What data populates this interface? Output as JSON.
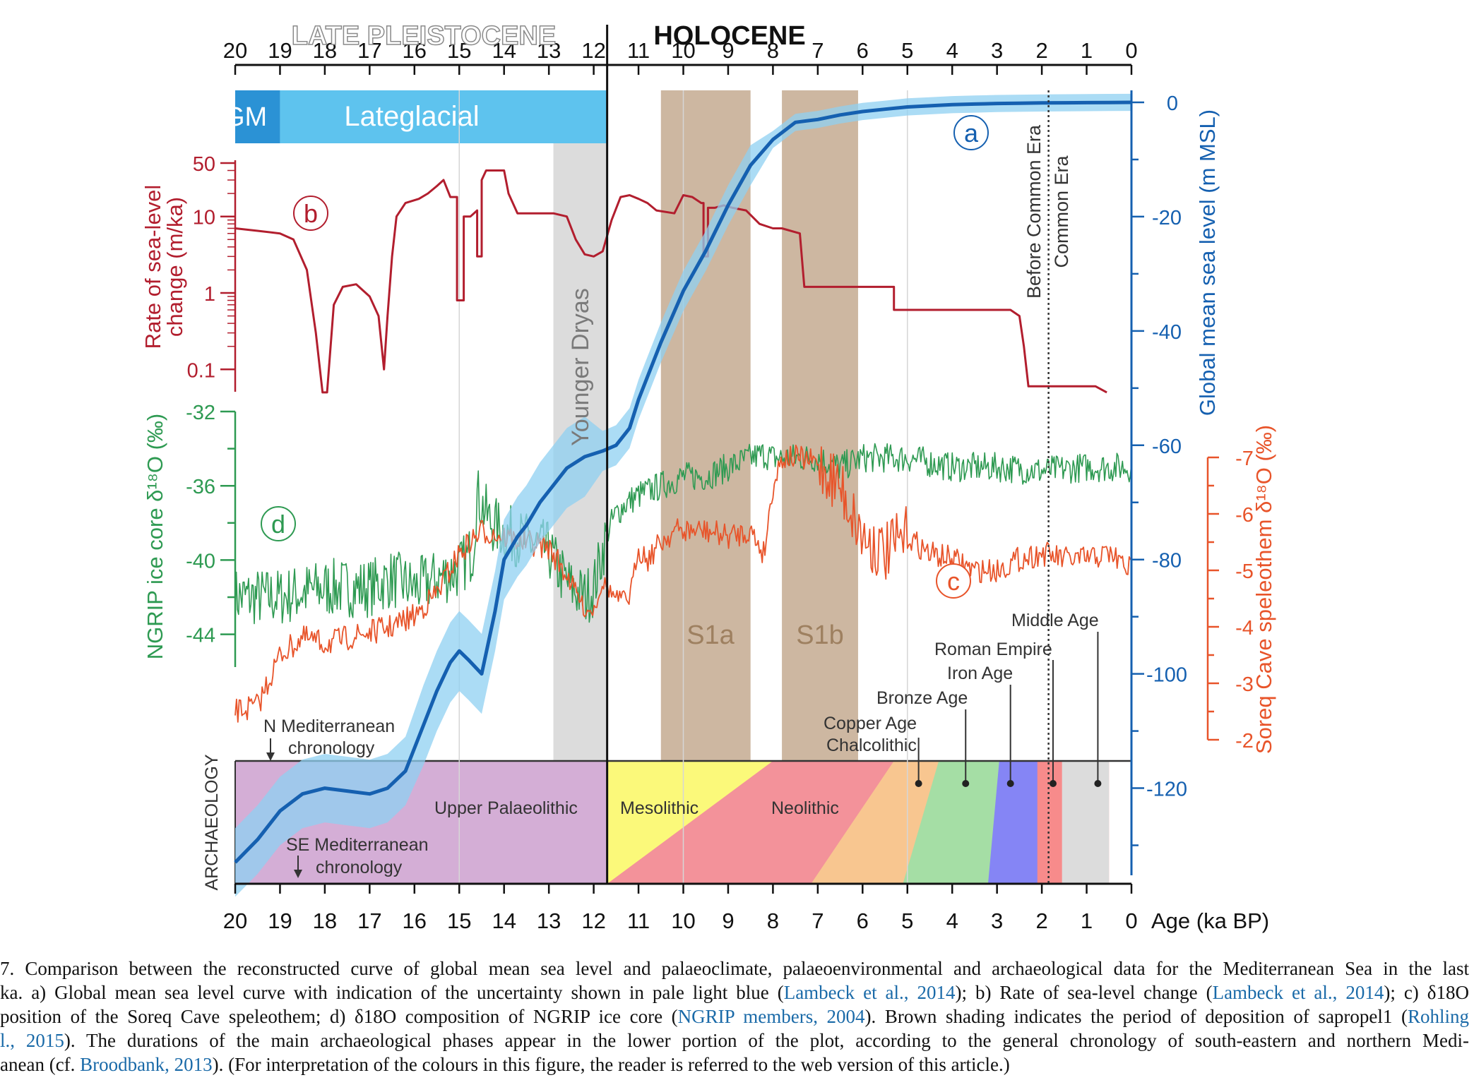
{
  "header": {
    "late_pleistocene": "LATE PLEISTOCENE",
    "holocene": "HOLOCENE"
  },
  "periods": {
    "lgm": "LGM",
    "lateglacial": "Lateglacial",
    "younger_dryas": "Younger Dryas",
    "s1a": "S1a",
    "s1b": "S1b"
  },
  "axes": {
    "age_ticks": [
      "20",
      "19",
      "18",
      "17",
      "16",
      "15",
      "14",
      "13",
      "12",
      "11",
      "10",
      "9",
      "8",
      "7",
      "6",
      "5",
      "4",
      "3",
      "2",
      "1",
      "0"
    ],
    "age_label": "Age (ka BP)",
    "rate_ticks": [
      "50",
      "10",
      "1",
      "0.1"
    ],
    "rate_label_1": "Rate of sea-level",
    "rate_label_2": "change (m/ka)",
    "ngrip_ticks": [
      "-32",
      "-36",
      "-40",
      "-44"
    ],
    "ngrip_label": "NGRIP ice core δ¹⁸O (‰)",
    "gmsl_ticks": [
      "0",
      "-20",
      "-40",
      "-60",
      "-80",
      "-100",
      "-120"
    ],
    "gmsl_label": "Global mean sea level (m MSL)",
    "soreq_ticks": [
      "-7",
      "-6",
      "-5",
      "-4",
      "-3",
      "-2"
    ],
    "soreq_label": "Soreq Cave speleothem δ¹⁸O (‰)",
    "archaeology_label": "ARCHAEOLOGY"
  },
  "circle_labels": {
    "a": "a",
    "b": "b",
    "c": "c",
    "d": "d"
  },
  "era_labels": {
    "bce": "Before Common Era",
    "ce": "Common Era"
  },
  "archaeology": {
    "n_chron_1": "N Mediterranean",
    "n_chron_2": "chronology",
    "se_chron_1": "SE Mediterranean",
    "se_chron_2": "chronology",
    "upper_palaeolithic": "Upper Palaeolithic",
    "mesolithic": "Mesolithic",
    "neolithic": "Neolithic",
    "copper_age_1": "Copper Age",
    "copper_age_2": "Chalcolithic",
    "bronze_age": "Bronze Age",
    "iron_age": "Iron Age",
    "roman_empire": "Roman Empire",
    "middle_age": "Middle Age"
  },
  "colors": {
    "gmsl": "#1560b0",
    "gmsl_uncertainty": "#8fd0f2",
    "rate": "#b21e2e",
    "ngrip": "#2e9a52",
    "soreq": "#e8542a",
    "lgm": "#2b92d5",
    "lateglacial": "#5ec3ee",
    "younger_dryas": "#dcdcdc",
    "sapropel": "#cdb7a1",
    "palaeolithic": "#d4aed6",
    "mesolithic": "#fbf97a",
    "neolithic": "#f3929a",
    "chalcolithic": "#f8c690",
    "bronze": "#a5dea5",
    "iron": "#8585f5",
    "roman": "#f78b8b",
    "middle": "#dcdcdc"
  },
  "caption": {
    "lines": [
      [
        {
          "t": "7.  Comparison between the reconstructed curve of global mean sea level and palaeoclimate, palaeoenvironmental and archaeological data for the Mediterranean Sea in the last"
        }
      ],
      [
        {
          "t": "ka. a) Global mean sea level curve with indication of the uncertainty shown in pale light blue ("
        },
        {
          "t": "Lambeck et al., 2014",
          "ref": true
        },
        {
          "t": "); b) Rate of sea-level change ("
        },
        {
          "t": "Lambeck et al., 2014",
          "ref": true
        },
        {
          "t": "); c) δ18O"
        }
      ],
      [
        {
          "t": "position of the Soreq Cave speleothem; d) δ18O composition of NGRIP ice core ("
        },
        {
          "t": "NGRIP members, 2004",
          "ref": true
        },
        {
          "t": "). Brown shading indicates the period of deposition of sapropel1 ("
        },
        {
          "t": "Rohling",
          "ref": true
        }
      ],
      [
        {
          "t": "l., 2015",
          "ref": true
        },
        {
          "t": "). The durations of the main archaeological phases appear in the lower portion of the plot, according to the general chronology of south-eastern and northern Medi-"
        }
      ],
      [
        {
          "t": "anean (cf. "
        },
        {
          "t": "Broodbank, 2013",
          "ref": true
        },
        {
          "t": "). (For interpretation of the colours in this figure, the reader is referred to the web version of this article.)"
        }
      ]
    ]
  },
  "chart_data": [
    {
      "type": "line",
      "name": "Global mean sea level",
      "x": [
        20,
        19.5,
        19,
        18.5,
        18,
        17.5,
        17,
        16.6,
        16.2,
        15.8,
        15.5,
        15.2,
        15,
        14.8,
        14.5,
        14.2,
        14,
        13.7,
        13.5,
        13.2,
        13,
        12.6,
        12.2,
        11.8,
        11.5,
        11.2,
        11,
        10.5,
        10,
        9.5,
        9,
        8.5,
        8,
        7.5,
        7,
        6.5,
        6,
        5.5,
        5,
        4.5,
        4,
        3.5,
        3,
        2.5,
        2,
        1.5,
        1,
        0.5,
        0
      ],
      "y": [
        -133,
        -129,
        -124,
        -121,
        -120,
        -120.5,
        -121,
        -120,
        -117,
        -109,
        -103,
        -98,
        -96,
        -97.5,
        -100,
        -89,
        -80,
        -76,
        -74,
        -70,
        -68,
        -64,
        -62,
        -61,
        -60,
        -57,
        -52,
        -42,
        -33,
        -26,
        -18,
        -11,
        -6.5,
        -3.5,
        -3,
        -2.2,
        -1.6,
        -1.2,
        -0.8,
        -0.6,
        -0.4,
        -0.3,
        -0.2,
        -0.15,
        -0.1,
        -0.08,
        -0.05,
        -0.02,
        0
      ],
      "xlabel": "Age (ka BP)",
      "ylabel": "Global mean sea level (m MSL)",
      "xlim": [
        20,
        0
      ],
      "ylim": [
        -135,
        0
      ]
    },
    {
      "type": "line",
      "name": "Rate of sea-level change",
      "x": [
        20,
        19.5,
        19,
        18.7,
        18.4,
        18.2,
        18.05,
        17.95,
        17.8,
        17.6,
        17.3,
        17,
        16.8,
        16.68,
        16.6,
        16.5,
        16.4,
        16.2,
        15.9,
        15.7,
        15.5,
        15.35,
        15.2,
        15.05,
        15.05,
        14.9,
        14.9,
        14.75,
        14.6,
        14.6,
        14.5,
        14.5,
        14.4,
        14.2,
        14.0,
        13.9,
        13.7,
        13.3,
        12.9,
        12.6,
        12.4,
        12.2,
        12.0,
        11.8,
        11.6,
        11.4,
        11.2,
        11.0,
        10.8,
        10.6,
        10.2,
        10.0,
        9.8,
        9.6,
        9.55,
        9.55,
        9.45,
        9.45,
        9.3,
        9.1,
        8.9,
        8.6,
        8.3,
        8.0,
        7.8,
        7.4,
        7.3,
        7.1,
        6.95,
        6.7,
        6.7,
        6.2,
        5.6,
        5.3,
        5.3,
        4.2,
        3.5,
        2.7,
        2.5,
        2.4,
        2.3,
        1.8,
        1.3,
        0.8,
        0.55
      ],
      "y": [
        7,
        6.5,
        6,
        5,
        2,
        0.3,
        0.05,
        0.05,
        0.7,
        1.2,
        1.3,
        0.9,
        0.5,
        0.1,
        0.5,
        3,
        10,
        15,
        17,
        20,
        25,
        30,
        18,
        18,
        0.8,
        0.8,
        10,
        10,
        12,
        3,
        3,
        30,
        40,
        40,
        40,
        20,
        11,
        11,
        11,
        10,
        5,
        3.2,
        3,
        3.5,
        9,
        18,
        19,
        17,
        15,
        12,
        11,
        19,
        18,
        15,
        15,
        3,
        3,
        13,
        13,
        14,
        13,
        12,
        8,
        7,
        7,
        6,
        1.2,
        1.2,
        1.2,
        1.2,
        1.2,
        1.2,
        1.2,
        1.2,
        0.6,
        0.6,
        0.6,
        0.6,
        0.5,
        0.2,
        0.06,
        0.06,
        0.06,
        0.06,
        0.05
      ],
      "ylabel": "Rate of sea-level change (m/ka)",
      "yscale": "log",
      "xlim": [
        20,
        0
      ],
      "ylim": [
        0.05,
        50
      ]
    },
    {
      "type": "line",
      "name": "NGRIP ice core δ18O",
      "x": [
        20,
        19,
        18,
        17,
        16.5,
        16,
        15.5,
        15,
        14.7,
        14.6,
        14.5,
        14.3,
        14.0,
        13.5,
        13.0,
        12.8,
        12.5,
        12.2,
        12.0,
        11.7,
        11.5,
        11.3,
        11.0,
        10.5,
        10.0,
        9.5,
        9.0,
        8.5,
        8.2,
        8.0,
        7.5,
        7.0,
        6.5,
        6.0,
        5.0,
        4.0,
        3.0,
        2.0,
        1.0,
        0
      ],
      "y": [
        -42,
        -42,
        -41.5,
        -41.5,
        -41,
        -41.5,
        -41,
        -40.5,
        -39.5,
        -36.5,
        -37,
        -38,
        -38.5,
        -39,
        -39.5,
        -40.5,
        -41.5,
        -42,
        -41.5,
        -38.5,
        -37.5,
        -37,
        -36.5,
        -36,
        -35.5,
        -35.5,
        -35,
        -34.5,
        -34.3,
        -34.5,
        -34.5,
        -34.5,
        -35,
        -34.5,
        -34.5,
        -35,
        -35,
        -35.2,
        -35,
        -35
      ],
      "ylabel": "NGRIP ice core δ¹⁸O (‰)",
      "xlim": [
        20,
        0
      ],
      "ylim": [
        -45,
        -32
      ]
    },
    {
      "type": "line",
      "name": "Soreq Cave speleothem δ18O",
      "x": [
        20,
        19.5,
        19,
        18.5,
        18,
        17.5,
        17,
        16.5,
        16,
        15.5,
        15,
        14.5,
        14,
        13.5,
        13,
        12.5,
        12.2,
        12.0,
        11.8,
        11.5,
        11.2,
        11.0,
        10.8,
        10.5,
        10.2,
        10.0,
        9.5,
        9.0,
        8.5,
        8.2,
        8.0,
        7.8,
        7.5,
        7.0,
        6.5,
        6.0,
        5.5,
        5.0,
        4.5,
        4.0,
        3.5,
        3.0,
        2.5,
        2.0,
        1.5,
        1.0,
        0.5,
        0
      ],
      "y": [
        -2.5,
        -2.6,
        -3.5,
        -3.8,
        -3.7,
        -3.8,
        -3.9,
        -4.0,
        -4.2,
        -4.6,
        -5.3,
        -5.7,
        -5.6,
        -5.5,
        -5.4,
        -4.8,
        -4.3,
        -4.3,
        -4.8,
        -4.5,
        -4.5,
        -5.4,
        -5.2,
        -5.5,
        -5.7,
        -5.7,
        -5.7,
        -5.6,
        -5.7,
        -5.3,
        -6.5,
        -7.0,
        -7.0,
        -6.9,
        -6.5,
        -5.6,
        -5.3,
        -5.6,
        -5.3,
        -5.2,
        -5.0,
        -5.0,
        -5.2,
        -5.3,
        -5.2,
        -5.2,
        -5.3,
        -5.0
      ],
      "ylabel": "Soreq Cave speleothem δ¹⁸O (‰)",
      "xlim": [
        20,
        0
      ],
      "ylim": [
        -1.8,
        -7.3
      ]
    }
  ]
}
